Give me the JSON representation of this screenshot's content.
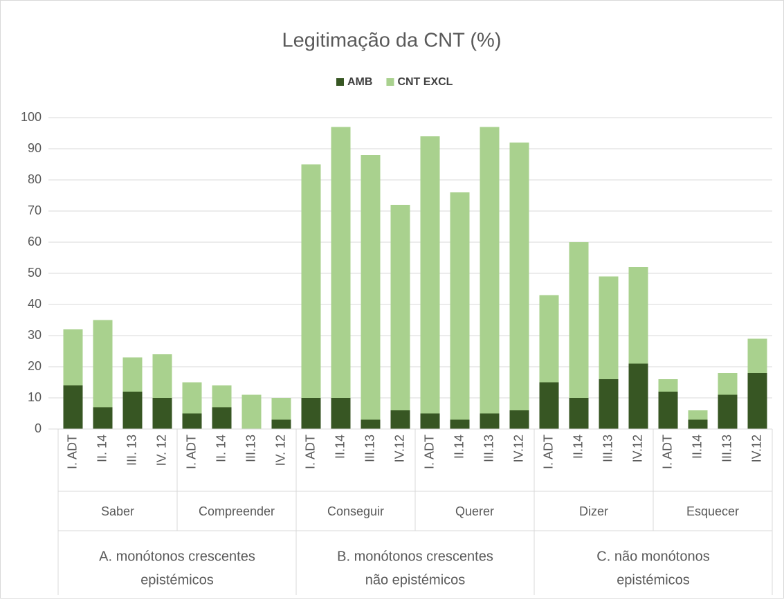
{
  "chart_data": {
    "type": "stacked_bar",
    "title": "Legitimação da CNT (%)",
    "categories": [
      "I. ADT",
      "II. 14",
      "III. 13",
      "IV. 12",
      "I. ADT",
      "II. 14",
      "III.13",
      "IV. 12",
      "I. ADT",
      "II.14",
      "III.13",
      "IV.12",
      "I. ADT",
      "II.14",
      "III.13",
      "IV.12",
      "I. ADT",
      "II.14",
      "III.13",
      "IV.12",
      "I. ADT",
      "II.14",
      "III.13",
      "IV.12"
    ],
    "groups": [
      "Saber",
      "Compreender",
      "Conseguir",
      "Querer",
      "Dizer",
      "Esquecer"
    ],
    "supergroups": [
      [
        "A. monótonos crescentes",
        "epistémicos"
      ],
      [
        "B. monótonos crescentes",
        "não epistémicos"
      ],
      [
        "C. não monótonos",
        "epistémicos"
      ]
    ],
    "series": [
      {
        "name": "AMB",
        "color": "#375623",
        "values": [
          14,
          7,
          12,
          10,
          5,
          7,
          0,
          3,
          10,
          10,
          3,
          6,
          5,
          3,
          5,
          6,
          15,
          10,
          16,
          21,
          12,
          3,
          11,
          18
        ]
      },
      {
        "name": "CNT EXCL",
        "color": "#a9d18e",
        "values": [
          18,
          28,
          11,
          14,
          10,
          7,
          11,
          7,
          75,
          87,
          85,
          66,
          89,
          73,
          92,
          86,
          28,
          50,
          33,
          31,
          4,
          3,
          7,
          11
        ]
      }
    ],
    "ylim": [
      0,
      100
    ],
    "yticks": [
      0,
      10,
      20,
      30,
      40,
      50,
      60,
      70,
      80,
      90,
      100
    ],
    "grid": true,
    "legend": "top"
  }
}
